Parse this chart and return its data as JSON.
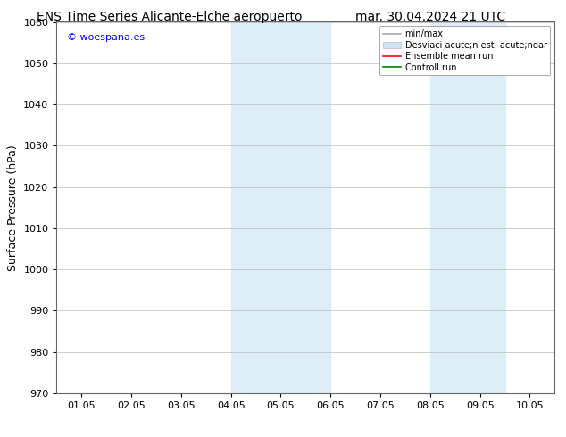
{
  "title_left": "ENS Time Series Alicante-Elche aeropuerto",
  "title_right": "mar. 30.04.2024 21 UTC",
  "ylabel": "Surface Pressure (hPa)",
  "watermark": "© woespana.es",
  "ylim": [
    970,
    1060
  ],
  "yticks": [
    970,
    980,
    990,
    1000,
    1010,
    1020,
    1030,
    1040,
    1050,
    1060
  ],
  "xlim_start": 0,
  "xlim_end": 9,
  "xtick_labels": [
    "01.05",
    "02.05",
    "03.05",
    "04.05",
    "05.05",
    "06.05",
    "07.05",
    "08.05",
    "09.05",
    "10.05"
  ],
  "xtick_positions": [
    0,
    1,
    2,
    3,
    4,
    5,
    6,
    7,
    8,
    9
  ],
  "shaded_regions": [
    {
      "xmin": 3.0,
      "xmax": 5.0,
      "color": "#ddeef8"
    },
    {
      "xmin": 7.0,
      "xmax": 8.5,
      "color": "#ddeef8"
    }
  ],
  "legend_entries": [
    {
      "label": "min/max",
      "color": "#aaaaaa",
      "lw": 1.2,
      "ls": "-",
      "type": "line"
    },
    {
      "label": "Desviaci acute;n est  acute;ndar",
      "color": "#cce4f4",
      "lw": 8,
      "ls": "-",
      "type": "patch"
    },
    {
      "label": "Ensemble mean run",
      "color": "red",
      "lw": 1.2,
      "ls": "-",
      "type": "line"
    },
    {
      "label": "Controll run",
      "color": "green",
      "lw": 1.2,
      "ls": "-",
      "type": "line"
    }
  ],
  "bg_color": "#ffffff",
  "plot_bg_color": "#ffffff",
  "grid_color": "#bbbbbb",
  "title_fontsize": 10,
  "tick_fontsize": 8,
  "ylabel_fontsize": 9,
  "watermark_fontsize": 8,
  "legend_fontsize": 7
}
